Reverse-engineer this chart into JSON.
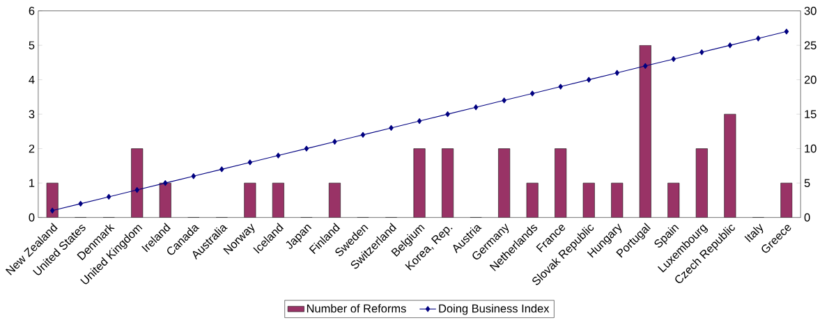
{
  "chart_data": {
    "type": "bar",
    "categories": [
      "New Zealand",
      "United States",
      "Denmark",
      "United Kingdom",
      "Ireland",
      "Canada",
      "Australia",
      "Norway",
      "Iceland",
      "Japan",
      "Finland",
      "Sweden",
      "Switzerland",
      "Belgium",
      "Korea, Rep.",
      "Austria",
      "Germany",
      "Netherlands",
      "France",
      "Slovak Republic",
      "Hungary",
      "Portugal",
      "Spain",
      "Luxembourg",
      "Czech Republic",
      "Italy",
      "Greece"
    ],
    "series": [
      {
        "name": "Number of Reforms",
        "color": "#993366",
        "values": [
          1,
          0,
          0,
          2,
          1,
          0,
          0,
          1,
          1,
          0,
          1,
          0,
          0,
          2,
          2,
          0,
          2,
          1,
          2,
          1,
          1,
          5,
          1,
          2,
          3,
          0,
          1
        ]
      },
      {
        "name": "Doing Business Index",
        "type": "line",
        "axis": "y2",
        "color": "#000080",
        "marker": "diamond",
        "values": [
          1,
          2,
          3,
          4,
          5,
          6,
          7,
          8,
          9,
          10,
          11,
          12,
          13,
          14,
          15,
          16,
          17,
          18,
          19,
          20,
          21,
          22,
          23,
          24,
          25,
          26,
          27
        ]
      }
    ],
    "ylim": [
      0,
      6
    ],
    "yticks": [
      0,
      1,
      2,
      3,
      4,
      5,
      6
    ],
    "y2lim": [
      0,
      30
    ],
    "y2ticks": [
      0,
      5,
      10,
      15,
      20,
      25,
      30
    ],
    "legend": "bottom",
    "grid": false
  }
}
